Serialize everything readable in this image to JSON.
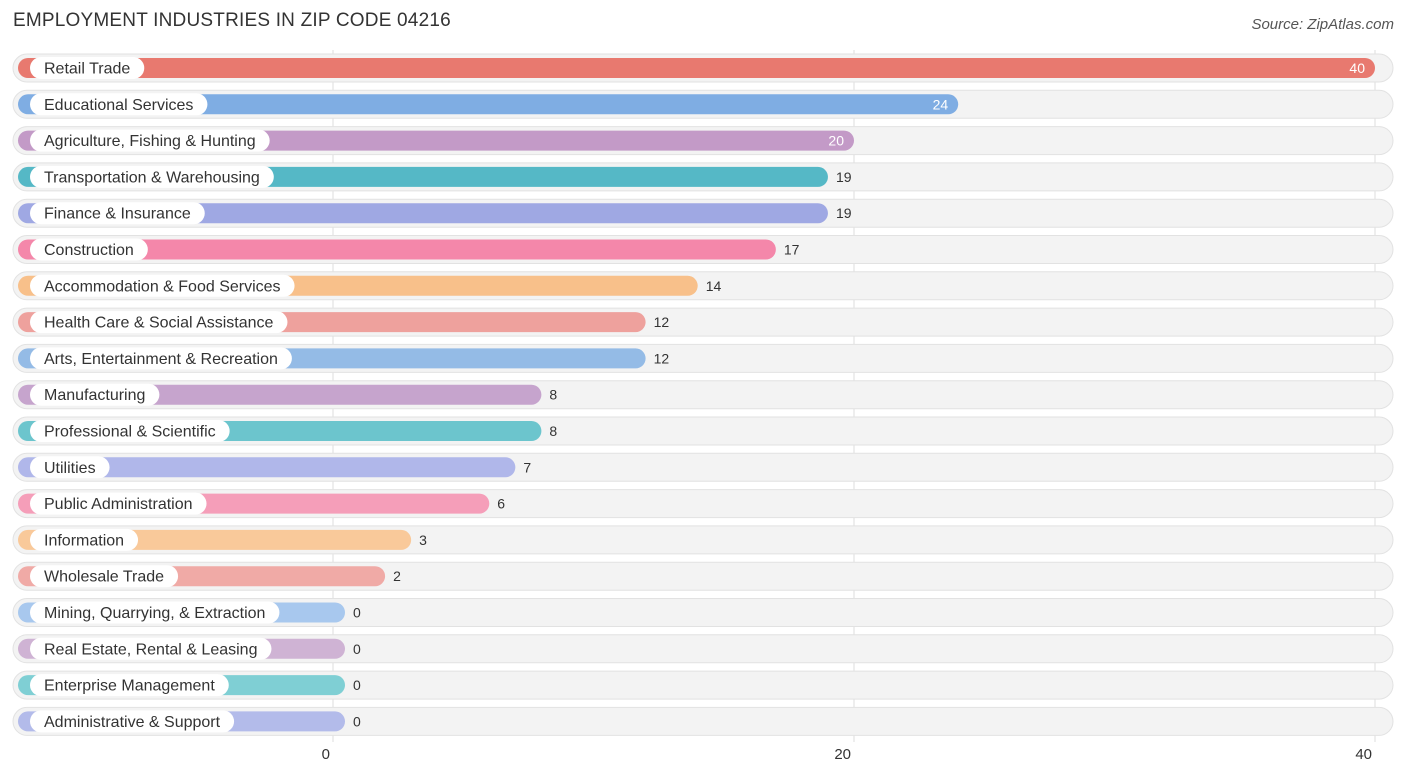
{
  "header": {
    "title": "EMPLOYMENT INDUSTRIES IN ZIP CODE 04216",
    "source": "Source: ZipAtlas.com"
  },
  "chart_data": {
    "type": "bar",
    "orientation": "horizontal",
    "title": "EMPLOYMENT INDUSTRIES IN ZIP CODE 04216",
    "xlabel": "",
    "ylabel": "",
    "xlim": [
      0,
      40
    ],
    "xticks": [
      0,
      20,
      40
    ],
    "grid": true,
    "categories": [
      "Retail Trade",
      "Educational Services",
      "Agriculture, Fishing & Hunting",
      "Transportation & Warehousing",
      "Finance & Insurance",
      "Construction",
      "Accommodation & Food Services",
      "Health Care & Social Assistance",
      "Arts, Entertainment & Recreation",
      "Manufacturing",
      "Professional & Scientific",
      "Utilities",
      "Public Administration",
      "Information",
      "Wholesale Trade",
      "Mining, Quarrying, & Extraction",
      "Real Estate, Rental & Leasing",
      "Enterprise Management",
      "Administrative & Support"
    ],
    "values": [
      40,
      24,
      20,
      19,
      19,
      17,
      14,
      12,
      12,
      8,
      8,
      7,
      6,
      3,
      2,
      0,
      0,
      0,
      0
    ],
    "colors": [
      "#e8796f",
      "#7fade3",
      "#c39ac7",
      "#55b8c6",
      "#9fa8e3",
      "#f487aa",
      "#f8c08a",
      "#eea19d",
      "#94bbe6",
      "#c6a4cd",
      "#6cc5cd",
      "#b0b7ea",
      "#f59eb9",
      "#f9c99a",
      "#f0aaa6",
      "#a8c8ee",
      "#cfb3d4",
      "#7fcfd4",
      "#b3bbea"
    ]
  }
}
